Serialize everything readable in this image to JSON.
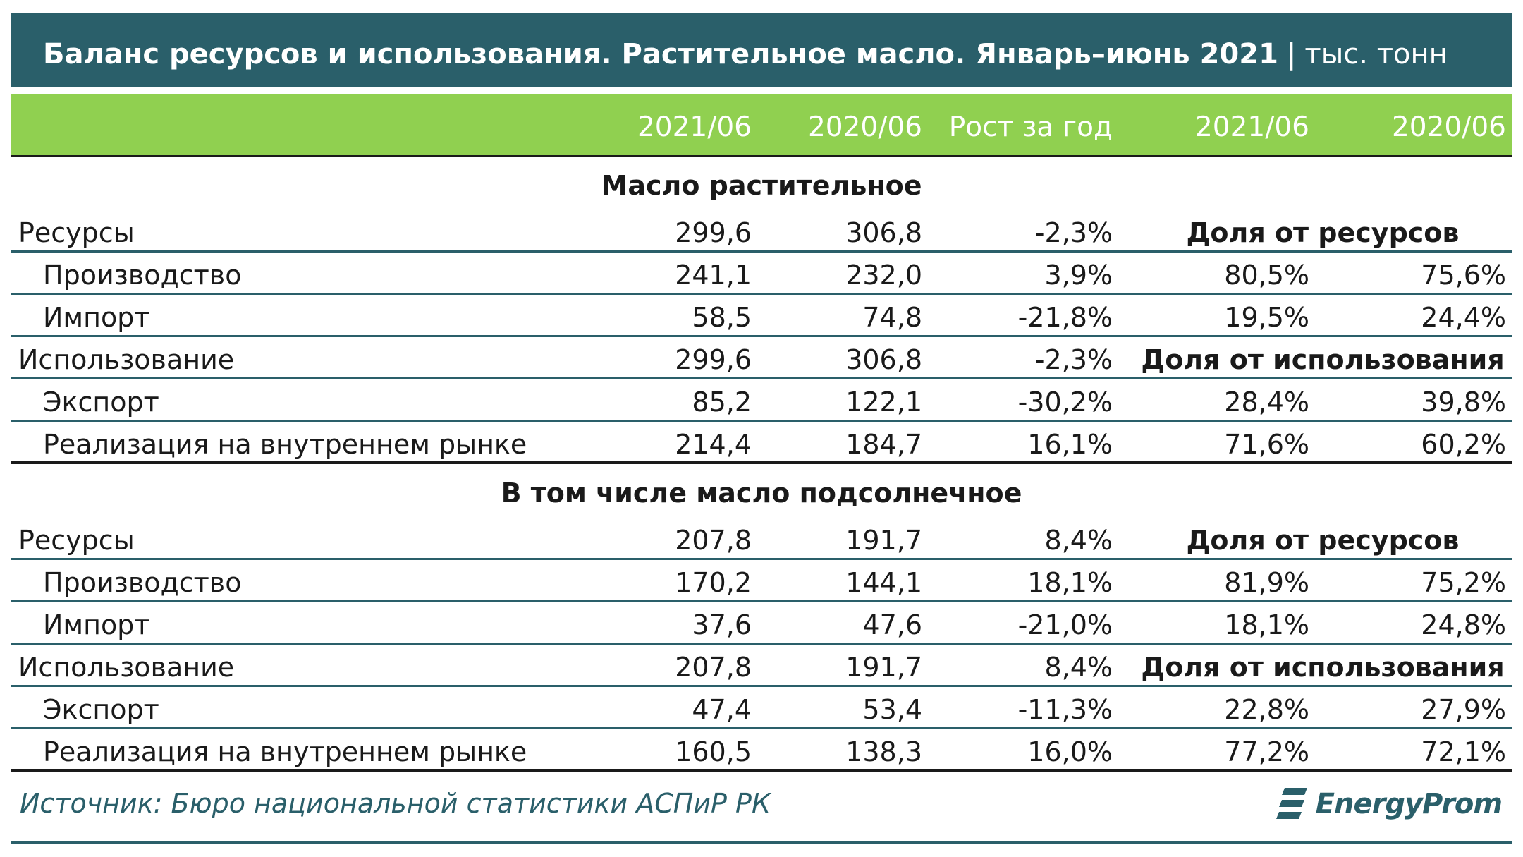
{
  "title": {
    "main": "Баланс ресурсов и использования. Растительное масло. Январь–июнь 2021",
    "separator": "|",
    "unit": "тыс. тонн"
  },
  "header": [
    "2021/06",
    "2020/06",
    "Рост за год",
    "2021/06",
    "2020/06"
  ],
  "sections": [
    {
      "title": "Масло растительное",
      "rows": [
        {
          "label": "Ресурсы",
          "v1": "299,6",
          "v2": "306,8",
          "growth": "-2,3%",
          "share_label": "Доля от ресурсов"
        },
        {
          "label": "Производство",
          "v1": "241,1",
          "v2": "232,0",
          "growth": "3,9%",
          "s1": "80,5%",
          "s2": "75,6%"
        },
        {
          "label": "Импорт",
          "v1": "58,5",
          "v2": "74,8",
          "growth": "-21,8%",
          "s1": "19,5%",
          "s2": "24,4%"
        },
        {
          "label": "Использование",
          "v1": "299,6",
          "v2": "306,8",
          "growth": "-2,3%",
          "share_label": "Доля от использования"
        },
        {
          "label": "Экспорт",
          "v1": "85,2",
          "v2": "122,1",
          "growth": "-30,2%",
          "s1": "28,4%",
          "s2": "39,8%"
        },
        {
          "label": "Реализация на внутреннем рынке",
          "v1": "214,4",
          "v2": "184,7",
          "growth": "16,1%",
          "s1": "71,6%",
          "s2": "60,2%"
        }
      ]
    },
    {
      "title": "В том числе масло подсолнечное",
      "rows": [
        {
          "label": "Ресурсы",
          "v1": "207,8",
          "v2": "191,7",
          "growth": "8,4%",
          "share_label": "Доля от ресурсов"
        },
        {
          "label": "Производство",
          "v1": "170,2",
          "v2": "144,1",
          "growth": "18,1%",
          "s1": "81,9%",
          "s2": "75,2%"
        },
        {
          "label": "Импорт",
          "v1": "37,6",
          "v2": "47,6",
          "growth": "-21,0%",
          "s1": "18,1%",
          "s2": "24,8%"
        },
        {
          "label": "Использование",
          "v1": "207,8",
          "v2": "191,7",
          "growth": "8,4%",
          "share_label": "Доля от использования"
        },
        {
          "label": "Экспорт",
          "v1": "47,4",
          "v2": "53,4",
          "growth": "-11,3%",
          "s1": "22,8%",
          "s2": "27,9%"
        },
        {
          "label": "Реализация на внутреннем рынке",
          "v1": "160,5",
          "v2": "138,3",
          "growth": "16,0%",
          "s1": "77,2%",
          "s2": "72,1%"
        }
      ]
    }
  ],
  "source": "Источник: Бюро национальной статистики АСПиР РК",
  "logo": {
    "text": "EnergyProm",
    "icon": "energyprom-logo-icon"
  },
  "colors": {
    "title_bg": "#2a5f6a",
    "header_bg": "#90d050",
    "rule": "#2a5f6a",
    "text": "#1a1a1a"
  }
}
